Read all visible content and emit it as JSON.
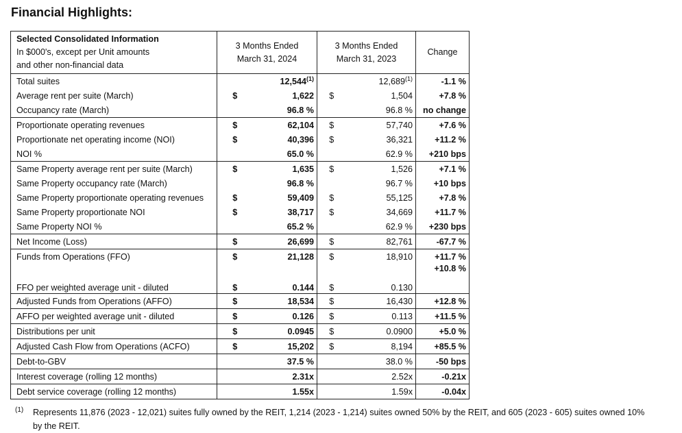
{
  "title": "Financial Highlights:",
  "table": {
    "header": [
      [
        "Selected Consolidated Information",
        "In $000's, except per Unit amounts",
        "and other non-financial data"
      ],
      [
        "3 Months Ended",
        "March 31, 2024"
      ],
      [
        "3 Months Ended",
        "March 31, 2023"
      ],
      [
        "Change"
      ]
    ],
    "groups": [
      [
        {
          "label": "Total suites",
          "cur": "12,544",
          "cur_note": "(1)",
          "prev": "12,689",
          "prev_note": "(1)",
          "change": "-1.1 %"
        },
        {
          "label": "Average rent per suite (March)",
          "cur_sign": "$",
          "cur": "1,622",
          "prev_sign": "$",
          "prev": "1,504",
          "change": "+7.8 %"
        },
        {
          "label": "Occupancy rate (March)",
          "cur": "96.8 %",
          "prev": "96.8 %",
          "change": "no change"
        }
      ],
      [
        {
          "label": "Proportionate operating revenues",
          "cur_sign": "$",
          "cur": "62,104",
          "prev_sign": "$",
          "prev": "57,740",
          "change": "+7.6 %"
        },
        {
          "label": "Proportionate net operating income (NOI)",
          "cur_sign": "$",
          "cur": "40,396",
          "prev_sign": "$",
          "prev": "36,321",
          "change": "+11.2 %"
        },
        {
          "label": "NOI %",
          "cur": "65.0 %",
          "prev": "62.9 %",
          "change": "+210 bps"
        }
      ],
      [
        {
          "label": "Same Property average rent per suite (March)",
          "cur_sign": "$",
          "cur": "1,635",
          "prev_sign": "$",
          "prev": "1,526",
          "change": "+7.1 %"
        },
        {
          "label": "Same Property occupancy rate (March)",
          "cur": "96.8 %",
          "prev": "96.7 %",
          "change": "+10 bps"
        },
        {
          "label": "Same Property proportionate operating revenues",
          "cur_sign": "$",
          "cur": "59,409",
          "prev_sign": "$",
          "prev": "55,125",
          "change": "+7.8 %"
        },
        {
          "label": "Same Property proportionate NOI",
          "cur_sign": "$",
          "cur": "38,717",
          "prev_sign": "$",
          "prev": "34,669",
          "change": "+11.7 %"
        },
        {
          "label": "Same Property NOI %",
          "cur": "65.2 %",
          "prev": "62.9 %",
          "change": "+230 bps"
        }
      ],
      [
        {
          "label": "Net Income (Loss)",
          "cur_sign": "$",
          "cur": "26,699",
          "prev_sign": "$",
          "prev": "82,761",
          "change": "-67.7 %"
        }
      ],
      [
        {
          "label": "Funds from Operations (FFO)",
          "cur_sign": "$",
          "cur": "21,128",
          "prev_sign": "$",
          "prev": "18,910",
          "change": "+11.7 %"
        },
        {
          "label": "FFO per weighted average unit - diluted",
          "cur_sign": "$",
          "cur": "0.144",
          "prev_sign": "$",
          "prev": "0.130",
          "change": "+10.8 %"
        }
      ],
      [
        {
          "label": "Adjusted Funds from Operations (AFFO)",
          "cur_sign": "$",
          "cur": "18,534",
          "prev_sign": "$",
          "prev": "16,430",
          "change": "+12.8 %"
        }
      ],
      [
        {
          "label": "AFFO per weighted average unit - diluted",
          "cur_sign": "$",
          "cur": "0.126",
          "prev_sign": "$",
          "prev": "0.113",
          "change": "+11.5 %"
        }
      ],
      [
        {
          "label": "Distributions per unit",
          "cur_sign": "$",
          "cur": "0.0945",
          "prev_sign": "$",
          "prev": "0.0900",
          "change": "+5.0 %"
        }
      ],
      [
        {
          "label": "Adjusted Cash Flow from Operations (ACFO)",
          "cur_sign": "$",
          "cur": "15,202",
          "prev_sign": "$",
          "prev": "8,194",
          "change": "+85.5 %"
        }
      ],
      [
        {
          "label": "Debt-to-GBV",
          "cur": "37.5 %",
          "prev": "38.0 %",
          "change": "-50 bps"
        }
      ],
      [
        {
          "label": "Interest coverage (rolling 12 months)",
          "cur": "2.31x",
          "prev": "2.52x",
          "change": "-0.21x"
        }
      ],
      [
        {
          "label": "Debt service coverage (rolling 12 months)",
          "cur": "1.55x",
          "prev": "1.59x",
          "change": "-0.04x"
        }
      ]
    ]
  },
  "footnote": {
    "marker": "(1)",
    "text": "Represents 11,876 (2023 - 12,021) suites fully owned by the REIT, 1,214 (2023 - 1,214) suites owned 50% by the REIT, and 605 (2023 - 605) suites owned 10% by the REIT."
  }
}
